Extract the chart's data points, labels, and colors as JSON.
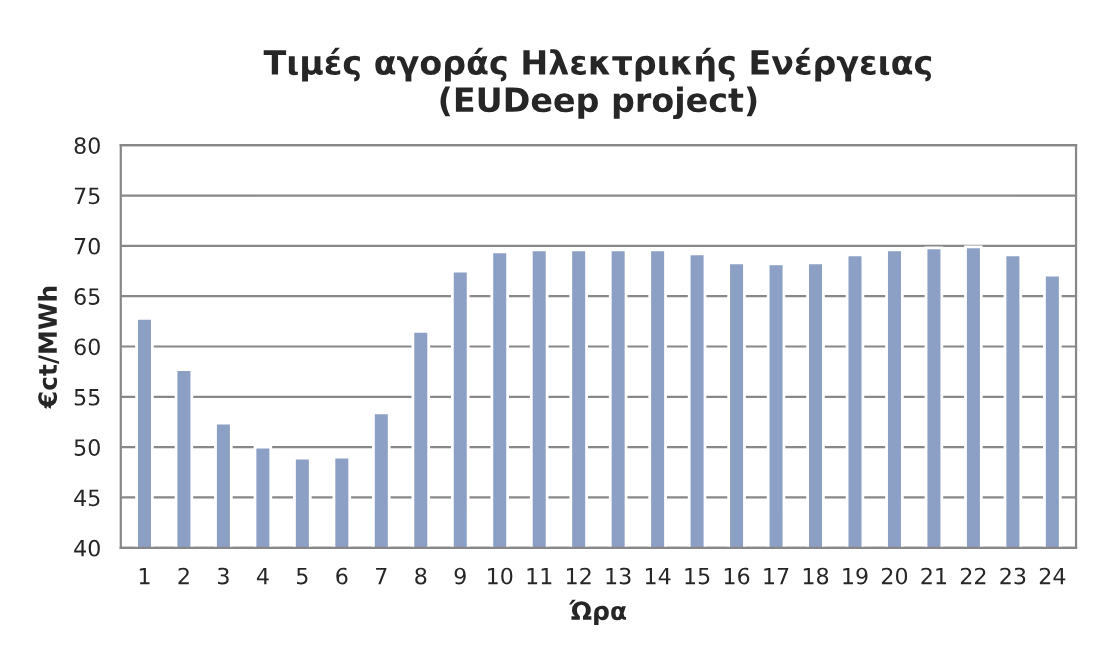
{
  "chart_data": {
    "type": "bar",
    "title": "Τιμές αγοράς Ηλεκτρικής Ενέργειας\n(EUDeep project)",
    "xlabel": "Ώρα",
    "ylabel": "€ct/MWh",
    "categories": [
      "1",
      "2",
      "3",
      "4",
      "5",
      "6",
      "7",
      "8",
      "9",
      "10",
      "11",
      "12",
      "13",
      "14",
      "15",
      "16",
      "17",
      "18",
      "19",
      "20",
      "21",
      "22",
      "23",
      "24"
    ],
    "values": [
      62.8,
      57.7,
      52.4,
      50.0,
      48.9,
      49.0,
      53.4,
      61.5,
      67.5,
      69.4,
      69.6,
      69.6,
      69.6,
      69.6,
      69.2,
      68.3,
      68.2,
      68.3,
      69.1,
      69.6,
      69.8,
      69.9,
      69.1,
      67.1
    ],
    "color": "#8c9fc4",
    "ylim": [
      40,
      80
    ],
    "yticks": [
      40,
      45,
      50,
      55,
      60,
      65,
      70,
      75,
      80
    ],
    "grid": "y",
    "legend": false
  }
}
